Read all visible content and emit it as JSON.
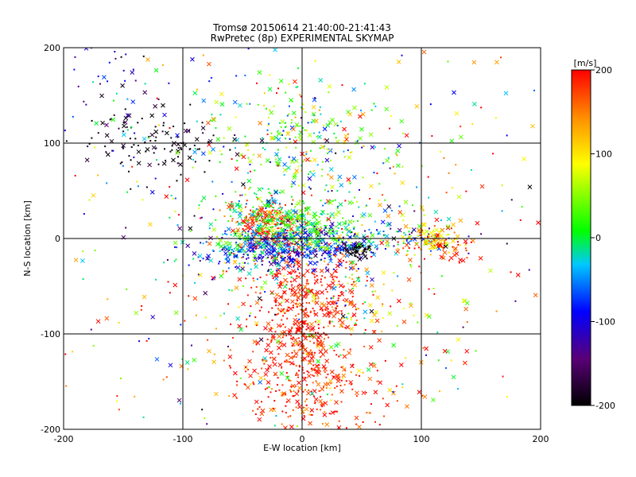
{
  "chart_data": {
    "type": "scatter",
    "title": "Tromsø 20150614 21:40:00-21:41:43",
    "subtitle": "RwPretec (8p) EXPERIMENTAL SKYMAP",
    "xlabel": "E-W location [km]",
    "ylabel": "N-S location [km]",
    "xlim": [
      -200,
      200
    ],
    "ylim": [
      -200,
      200
    ],
    "xticks": [
      -200,
      -100,
      0,
      100,
      200
    ],
    "yticks": [
      -200,
      -100,
      0,
      100,
      200
    ],
    "grid": true,
    "colorbar": {
      "label": "[m/s]",
      "range": [
        -200,
        200
      ],
      "ticks": [
        200,
        100,
        0,
        -100,
        -200
      ],
      "colormap": [
        "#000000",
        "#5a0078",
        "#0000ff",
        "#00c8ff",
        "#00ff00",
        "#ffff00",
        "#ff8c00",
        "#ff0000"
      ]
    },
    "markers": [
      "dot",
      "x"
    ],
    "clusters": [
      {
        "cx": 0,
        "cy": -80,
        "sx": 22,
        "sy": 40,
        "n": 500,
        "vmean": 190,
        "vsd": 20
      },
      {
        "cx": 5,
        "cy": -160,
        "sx": 40,
        "sy": 25,
        "n": 220,
        "vmean": 180,
        "vsd": 30
      },
      {
        "cx": -30,
        "cy": 15,
        "sx": 14,
        "sy": 12,
        "n": 220,
        "vmean": 180,
        "vsd": 25
      },
      {
        "cx": 0,
        "cy": 15,
        "sx": 25,
        "sy": 15,
        "n": 280,
        "vmean": 20,
        "vsd": 30
      },
      {
        "cx": -20,
        "cy": -15,
        "sx": 35,
        "sy": 8,
        "n": 240,
        "vmean": -95,
        "vsd": 30
      },
      {
        "cx": 45,
        "cy": -12,
        "sx": 6,
        "sy": 4,
        "n": 60,
        "vmean": -200,
        "vsd": 10
      },
      {
        "cx": 30,
        "cy": 0,
        "sx": 45,
        "sy": 8,
        "n": 200,
        "vmean": -60,
        "vsd": 60
      },
      {
        "cx": 115,
        "cy": -5,
        "sx": 15,
        "sy": 10,
        "n": 90,
        "vmean": 170,
        "vsd": 40
      },
      {
        "cx": 110,
        "cy": 0,
        "sx": 10,
        "sy": 6,
        "n": 40,
        "vmean": 90,
        "vsd": 20
      },
      {
        "cx": 0,
        "cy": 100,
        "sx": 40,
        "sy": 35,
        "n": 220,
        "vmean": 30,
        "vsd": 60
      },
      {
        "cx": -40,
        "cy": 5,
        "sx": 25,
        "sy": 25,
        "n": 180,
        "vmean": -20,
        "vsd": 30
      },
      {
        "cx": -120,
        "cy": 100,
        "sx": 30,
        "sy": 20,
        "n": 110,
        "vmean": -195,
        "vsd": 15
      },
      {
        "cx": -150,
        "cy": 150,
        "sx": 25,
        "sy": 30,
        "n": 50,
        "vmean": -120,
        "vsd": 60
      },
      {
        "cx": 40,
        "cy": -60,
        "sx": 40,
        "sy": 30,
        "n": 120,
        "vmean": 120,
        "vsd": 80
      },
      {
        "cx": 0,
        "cy": 0,
        "sx": 110,
        "sy": 110,
        "n": 650,
        "vmean": 60,
        "vsd": 120
      }
    ]
  }
}
